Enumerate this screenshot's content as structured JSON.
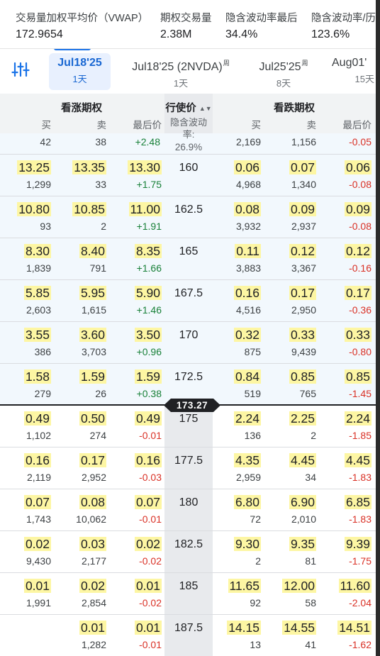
{
  "stats": [
    {
      "label": "交易量加权平均价（VWAP）",
      "value": "172.9654"
    },
    {
      "label": "期权交易量",
      "value": "2.38M"
    },
    {
      "label": "隐含波动率最后",
      "value": "34.4%"
    },
    {
      "label": "隐含波动率/历",
      "value": "123.6%"
    }
  ],
  "dates": [
    {
      "main": "Jul18'25",
      "sup": "",
      "sub": "1天"
    },
    {
      "main": "Jul18'25 (2NVDA)",
      "sup": "周",
      "sub": "1天"
    },
    {
      "main": "Jul25'25",
      "sup": "周",
      "sub": "8天"
    },
    {
      "main": "Aug01'",
      "sup": "",
      "sub": "15天"
    }
  ],
  "header": {
    "calls": "看涨期权",
    "strike": "行使价",
    "puts": "看跌期权",
    "bid": "买",
    "ask": "卖",
    "last": "最后价"
  },
  "iv": {
    "label": "隐含波动率:",
    "value": "26.9%"
  },
  "top_partial": {
    "c_bid_size": "42",
    "c_ask_size": "38",
    "c_chg": "+2.48",
    "p_bid_size": "2,169",
    "p_ask_size": "1,156",
    "p_chg": "-0.05"
  },
  "current_price": "173.27",
  "rows": [
    {
      "strike": "160",
      "c_bid": "13.25",
      "c_bid_size": "1,299",
      "c_ask": "13.35",
      "c_ask_size": "33",
      "c_last": "13.30",
      "c_chg": "+1.75",
      "p_bid": "0.06",
      "p_bid_size": "4,968",
      "p_ask": "0.07",
      "p_ask_size": "1,340",
      "p_last": "0.06",
      "p_chg": "-0.08"
    },
    {
      "strike": "162.5",
      "c_bid": "10.80",
      "c_bid_size": "93",
      "c_ask": "10.85",
      "c_ask_size": "2",
      "c_last": "11.00",
      "c_chg": "+1.91",
      "p_bid": "0.08",
      "p_bid_size": "3,932",
      "p_ask": "0.09",
      "p_ask_size": "2,937",
      "p_last": "0.09",
      "p_chg": "-0.08"
    },
    {
      "strike": "165",
      "c_bid": "8.30",
      "c_bid_size": "1,839",
      "c_ask": "8.40",
      "c_ask_size": "791",
      "c_last": "8.35",
      "c_chg": "+1.66",
      "p_bid": "0.11",
      "p_bid_size": "3,883",
      "p_ask": "0.12",
      "p_ask_size": "3,367",
      "p_last": "0.12",
      "p_chg": "-0.16"
    },
    {
      "strike": "167.5",
      "c_bid": "5.85",
      "c_bid_size": "2,603",
      "c_ask": "5.95",
      "c_ask_size": "1,615",
      "c_last": "5.90",
      "c_chg": "+1.46",
      "p_bid": "0.16",
      "p_bid_size": "4,516",
      "p_ask": "0.17",
      "p_ask_size": "2,950",
      "p_last": "0.17",
      "p_chg": "-0.36"
    },
    {
      "strike": "170",
      "c_bid": "3.55",
      "c_bid_size": "386",
      "c_ask": "3.60",
      "c_ask_size": "3,703",
      "c_last": "3.50",
      "c_chg": "+0.96",
      "p_bid": "0.32",
      "p_bid_size": "875",
      "p_ask": "0.33",
      "p_ask_size": "9,439",
      "p_last": "0.33",
      "p_chg": "-0.80"
    },
    {
      "strike": "172.5",
      "c_bid": "1.58",
      "c_bid_size": "279",
      "c_ask": "1.59",
      "c_ask_size": "26",
      "c_last": "1.59",
      "c_chg": "+0.38",
      "p_bid": "0.84",
      "p_bid_size": "519",
      "p_ask": "0.85",
      "p_ask_size": "765",
      "p_last": "0.85",
      "p_chg": "-1.45"
    },
    {
      "strike": "175",
      "c_bid": "0.49",
      "c_bid_size": "1,102",
      "c_ask": "0.50",
      "c_ask_size": "274",
      "c_last": "0.49",
      "c_chg": "-0.01",
      "p_bid": "2.24",
      "p_bid_size": "136",
      "p_ask": "2.25",
      "p_ask_size": "2",
      "p_last": "2.24",
      "p_chg": "-1.85"
    },
    {
      "strike": "177.5",
      "c_bid": "0.16",
      "c_bid_size": "2,119",
      "c_ask": "0.17",
      "c_ask_size": "2,952",
      "c_last": "0.16",
      "c_chg": "-0.03",
      "p_bid": "4.35",
      "p_bid_size": "2,959",
      "p_ask": "4.45",
      "p_ask_size": "34",
      "p_last": "4.45",
      "p_chg": "-1.83"
    },
    {
      "strike": "180",
      "c_bid": "0.07",
      "c_bid_size": "1,743",
      "c_ask": "0.08",
      "c_ask_size": "10,062",
      "c_last": "0.07",
      "c_chg": "-0.01",
      "p_bid": "6.80",
      "p_bid_size": "72",
      "p_ask": "6.90",
      "p_ask_size": "2,010",
      "p_last": "6.85",
      "p_chg": "-1.83"
    },
    {
      "strike": "182.5",
      "c_bid": "0.02",
      "c_bid_size": "9,430",
      "c_ask": "0.03",
      "c_ask_size": "2,177",
      "c_last": "0.02",
      "c_chg": "-0.02",
      "p_bid": "9.30",
      "p_bid_size": "2",
      "p_ask": "9.35",
      "p_ask_size": "81",
      "p_last": "9.39",
      "p_chg": "-1.75"
    },
    {
      "strike": "185",
      "c_bid": "0.01",
      "c_bid_size": "1,991",
      "c_ask": "0.02",
      "c_ask_size": "2,854",
      "c_last": "0.01",
      "c_chg": "-0.02",
      "p_bid": "11.65",
      "p_bid_size": "92",
      "p_ask": "12.00",
      "p_ask_size": "58",
      "p_last": "11.60",
      "p_chg": "-2.04"
    },
    {
      "strike": "187.5",
      "c_bid": "",
      "c_bid_size": "",
      "c_ask": "0.01",
      "c_ask_size": "1,282",
      "c_last": "0.01",
      "c_chg": "-0.01",
      "p_bid": "14.15",
      "p_bid_size": "13",
      "p_ask": "14.55",
      "p_ask_size": "41",
      "p_last": "14.51",
      "p_chg": "-1.62"
    }
  ],
  "colors": {
    "accent": "#1a73e8",
    "positive": "#188038",
    "negative": "#d93025",
    "highlight": "#fdf6a3",
    "itm_bg": "#f2f8fd"
  }
}
